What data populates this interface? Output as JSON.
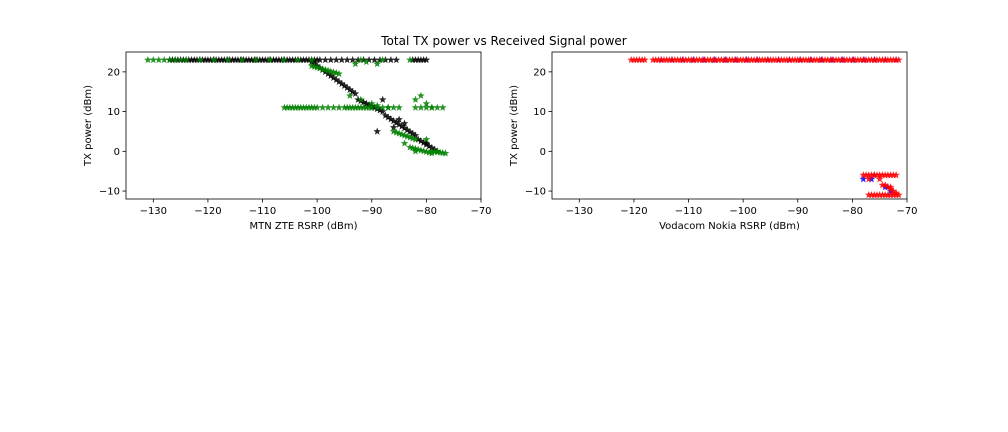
{
  "figure": {
    "title": "Total TX power vs Received Signal power"
  },
  "chart_data": [
    {
      "type": "scatter",
      "marker": "star",
      "xlabel": "MTN ZTE RSRP (dBm)",
      "ylabel": "TX power (dBm)",
      "xlim": [
        -135,
        -70
      ],
      "ylim": [
        -12,
        25
      ],
      "xticks": [
        -130,
        -120,
        -110,
        -100,
        -90,
        -80,
        -70
      ],
      "yticks": [
        -10,
        0,
        10,
        20
      ],
      "grid": false,
      "series": [
        {
          "color": "#000000",
          "segments": [
            {
              "x_from": -127,
              "x_to": -100,
              "y": 23,
              "step": 0.5
            },
            {
              "x_from": -99.5,
              "x_to": -85.5,
              "y": 23,
              "step": 1.0
            },
            {
              "x_from": -82.5,
              "x_to": -80,
              "y": 23,
              "step": 0.5
            },
            {
              "x_from": -101,
              "x_to": -93,
              "y_from": 22.5,
              "y_to": 14.5,
              "step": 0.5
            },
            {
              "x_from": -92.5,
              "x_to": -88,
              "y_from": 13,
              "y_to": 10,
              "step": 0.5
            },
            {
              "x_from": -87.5,
              "x_to": -82,
              "y_from": 9,
              "y_to": 4,
              "step": 0.5
            },
            {
              "x_from": -81.5,
              "x_to": -78,
              "y_from": 3,
              "y_to": 0,
              "step": 0.5
            }
          ],
          "points": [
            [
              -88,
              13
            ],
            [
              -89,
              5
            ],
            [
              -90,
              11
            ],
            [
              -85,
              8
            ],
            [
              -84,
              7
            ],
            [
              -86,
              6
            ],
            [
              -80,
              2
            ]
          ]
        },
        {
          "color": "#008000",
          "segments": [
            {
              "x_from": -131,
              "x_to": -125,
              "y": 23,
              "step": 1.0
            },
            {
              "x_from": -124,
              "x_to": -101,
              "y": 23,
              "step": 2.5
            },
            {
              "x_from": -106,
              "x_to": -100,
              "y": 11,
              "step": 0.5
            },
            {
              "x_from": -99,
              "x_to": -96,
              "y": 11,
              "step": 1.0
            },
            {
              "x_from": -95,
              "x_to": -90,
              "y": 11,
              "step": 0.5
            },
            {
              "x_from": -89,
              "x_to": -85,
              "y": 11,
              "step": 1.0
            },
            {
              "x_from": -82,
              "x_to": -77,
              "y": 11,
              "step": 1.0
            },
            {
              "x_from": -101,
              "x_to": -96,
              "y_from": 21.5,
              "y_to": 19.5,
              "step": 0.5
            },
            {
              "x_from": -86,
              "x_to": -82,
              "y_from": 5,
              "y_to": 3,
              "step": 0.5
            },
            {
              "x_from": -83,
              "x_to": -79,
              "y_from": 1,
              "y_to": -0.5,
              "step": 0.5
            },
            {
              "x_from": -79,
              "x_to": -76.5,
              "y_from": 0,
              "y_to": -0.5,
              "step": 0.5
            }
          ],
          "points": [
            [
              -93,
              22
            ],
            [
              -92,
              23
            ],
            [
              -91,
              22.5
            ],
            [
              -89,
              22
            ],
            [
              -88,
              23
            ],
            [
              -83,
              23
            ],
            [
              -94,
              14
            ],
            [
              -92,
              13
            ],
            [
              -90,
              12
            ],
            [
              -89,
              11.5
            ],
            [
              -87,
              11
            ],
            [
              -82,
              13
            ],
            [
              -81,
              14
            ],
            [
              -80,
              12
            ],
            [
              -79,
              11
            ],
            [
              -80,
              3
            ],
            [
              -78,
              0
            ],
            [
              -82,
              0
            ],
            [
              -84,
              2
            ]
          ]
        }
      ]
    },
    {
      "type": "scatter",
      "marker": "star",
      "xlabel": "Vodacom Nokia RSRP (dBm)",
      "ylabel": "TX power (dBm)",
      "xlim": [
        -135,
        -70
      ],
      "ylim": [
        -12,
        25
      ],
      "xticks": [
        -130,
        -120,
        -110,
        -100,
        -90,
        -80,
        -70
      ],
      "yticks": [
        -10,
        0,
        10,
        20
      ],
      "grid": false,
      "series": [
        {
          "color": "#0000ff",
          "segments": [
            {
              "x_from": -115,
              "x_to": -72,
              "y": 23,
              "step": 2.0
            }
          ],
          "points": [
            [
              -78,
              -7
            ],
            [
              -76.5,
              -7
            ],
            [
              -76,
              -6
            ],
            [
              -74,
              -9
            ],
            [
              -73.5,
              -9
            ],
            [
              -73,
              -10
            ]
          ]
        },
        {
          "color": "#ff0000",
          "segments": [
            {
              "x_from": -120.5,
              "x_to": -118,
              "y": 23,
              "step": 0.5
            },
            {
              "x_from": -116.5,
              "x_to": -71.5,
              "y": 23,
              "step": 0.5
            },
            {
              "x_from": -78,
              "x_to": -72,
              "y": -6,
              "step": 0.5
            },
            {
              "x_from": -77,
              "x_to": -71.5,
              "y": -11,
              "step": 0.5
            },
            {
              "x_from": -74,
              "x_to": -72,
              "y_from": -8.5,
              "y_to": -10.5,
              "step": 0.5
            }
          ],
          "points": [
            [
              -77,
              -7
            ],
            [
              -75,
              -7
            ],
            [
              -74.5,
              -8.5
            ],
            [
              -73,
              -9
            ]
          ]
        }
      ]
    }
  ]
}
